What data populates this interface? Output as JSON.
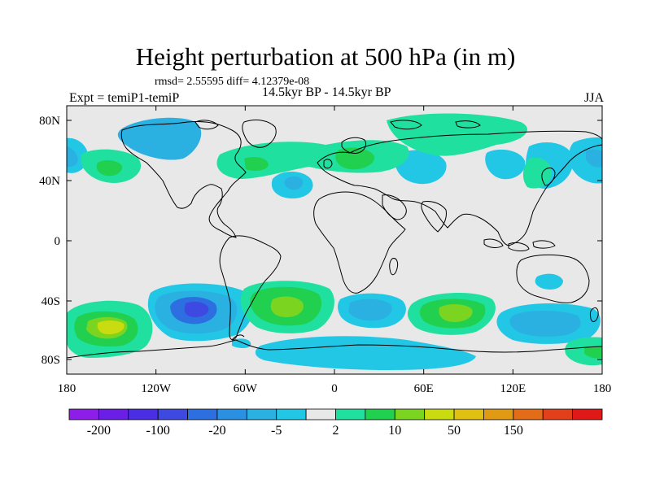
{
  "title": "Height perturbation at 500 hPa (in m)",
  "stats": "rmsd= 2.55595  diff= 4.12379e-08",
  "period": "14.5kyr BP - 14.5kyr BP",
  "experiment": "Expt = temiP1-temiP",
  "season": "JJA",
  "map": {
    "lat_ticks": [
      "80N",
      "40N",
      "0",
      "40S",
      "80S"
    ],
    "lon_ticks": [
      "180",
      "120W",
      "60W",
      "0",
      "60E",
      "120E",
      "180"
    ],
    "background_color": "#e8e8e8"
  },
  "colorbar": {
    "labels": [
      "-200",
      "-100",
      "-20",
      "-5",
      "2",
      "10",
      "50",
      "150"
    ],
    "colors": [
      "#8c1ee8",
      "#6a1ee6",
      "#4a2ee4",
      "#3d49e0",
      "#2d6ee0",
      "#2a91e2",
      "#2ab1e2",
      "#22c7e6",
      "#e8e8e8",
      "#20e0a0",
      "#22d050",
      "#7ad420",
      "#c8dc10",
      "#e0c010",
      "#e09a14",
      "#e26c18",
      "#e2401a",
      "#e01818"
    ]
  }
}
